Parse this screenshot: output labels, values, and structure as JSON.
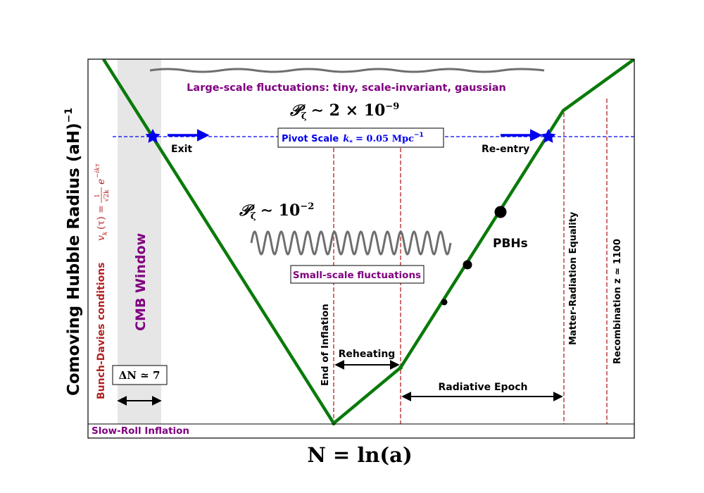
{
  "title": "",
  "axes": {
    "ylabel": "Comoving Hubble Radius (aH)",
    "ylabel_exp": "−1",
    "xlabel": "N = ln(a)"
  },
  "labels": {
    "large_scale": "Large-scale fluctuations: tiny, scale-invariant, gaussian",
    "p_zeta_large": "𝒫",
    "p_zeta_large_sub": "ζ",
    "p_zeta_large_val": "∼ 2 × 10",
    "p_zeta_large_exp": "−9",
    "pivot_prefix": "Pivot Scale",
    "pivot_k": "k",
    "pivot_k_sub": "*",
    "pivot_val": "= 0.05 Mpc",
    "pivot_exp": "−1",
    "exit": "Exit",
    "reentry": "Re-entry",
    "p_zeta_small": "𝒫",
    "p_zeta_small_sub": "ζ",
    "p_zeta_small_val": "∼ 10",
    "p_zeta_small_exp": "−2",
    "small_scale": "Small-scale fluctuations",
    "pbhs": "PBHs",
    "end_inflation": "End of Inflation",
    "reheating": "Reheating",
    "radiative": "Radiative Epoch",
    "matter_radiation": "Matter-Radiation Equality",
    "recombination": "Recombination z ≃ 1100",
    "cmb_window": "CMB Window",
    "delta_n": "ΔN ≃ 7",
    "bunch_davies": "Bunch-Davies conditions",
    "mode_function": "v",
    "mode_function_rest": "(τ) = e",
    "mode_function_sub": "k",
    "mode_function_exp": "−ikτ",
    "mode_frac_num": "1",
    "mode_frac_den": "√2k",
    "slow_roll": "Slow-Roll Inflation"
  },
  "colors": {
    "hubble_line": "#0a7a0a",
    "pivot": "#0000ee",
    "epoch_lines": "#b22222",
    "purple_text": "#800080",
    "wave": "#6e6e6e",
    "cmb_band": "#e6e6e6",
    "bunch_davies": "#b22222"
  }
}
